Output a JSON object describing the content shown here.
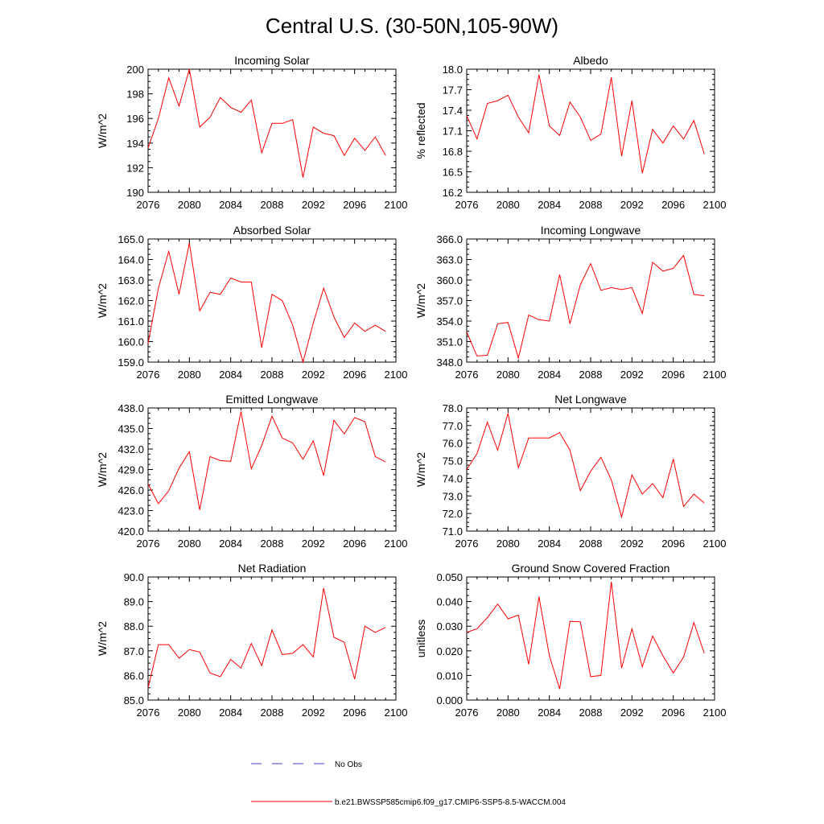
{
  "figure": {
    "title": "Central U.S. (30-50N,105-90W)",
    "legend": [
      {
        "label": "No Obs",
        "color": "#3c3ccc",
        "style": "dashed"
      },
      {
        "label": "b.e21.BWSSP585cmip6.f09_g17.CMIP6-SSP5-8.5-WACCM.004",
        "color": "#ff0000",
        "style": "solid"
      }
    ]
  },
  "chart_data": [
    {
      "type": "line",
      "title": "Incoming Solar",
      "ylabel": "W/m^2",
      "xlim": [
        2076,
        2100
      ],
      "ylim": [
        190,
        200
      ],
      "xticks": [
        "2076",
        "2080",
        "2084",
        "2088",
        "2092",
        "2096",
        "2100"
      ],
      "yticks": [
        "190",
        "192",
        "194",
        "196",
        "198",
        "200"
      ],
      "series": [
        {
          "name": "b.e21.BWSSP585cmip6.f09_g17.CMIP6-SSP5-8.5-WACCM.004",
          "color": "#ff0000",
          "x": [
            2076,
            2077,
            2078,
            2079,
            2080,
            2081,
            2082,
            2083,
            2084,
            2085,
            2086,
            2087,
            2088,
            2089,
            2090,
            2091,
            2092,
            2093,
            2094,
            2095,
            2096,
            2097,
            2098,
            2099
          ],
          "y": [
            193.6,
            196.0,
            199.3,
            197.0,
            200.0,
            195.3,
            196.1,
            197.7,
            196.9,
            196.5,
            197.5,
            193.2,
            195.6,
            195.6,
            195.9,
            191.2,
            195.3,
            194.8,
            194.6,
            193.0,
            194.4,
            193.4,
            194.5,
            193.0
          ]
        }
      ]
    },
    {
      "type": "line",
      "title": "Albedo",
      "ylabel": "% reflected",
      "xlim": [
        2076,
        2100
      ],
      "ylim": [
        16.2,
        18.0
      ],
      "xticks": [
        "2076",
        "2080",
        "2084",
        "2088",
        "2092",
        "2096",
        "2100"
      ],
      "yticks": [
        "16.2",
        "16.5",
        "16.8",
        "17.1",
        "17.4",
        "17.7",
        "18.0"
      ],
      "series": [
        {
          "name": "b.e21.BWSSP585cmip6.f09_g17.CMIP6-SSP5-8.5-WACCM.004",
          "color": "#ff0000",
          "x": [
            2076,
            2077,
            2078,
            2079,
            2080,
            2081,
            2082,
            2083,
            2084,
            2085,
            2086,
            2087,
            2088,
            2089,
            2090,
            2091,
            2092,
            2093,
            2094,
            2095,
            2096,
            2097,
            2098,
            2099
          ],
          "y": [
            17.32,
            16.98,
            17.5,
            17.54,
            17.62,
            17.3,
            17.07,
            17.92,
            17.17,
            17.03,
            17.52,
            17.3,
            16.96,
            17.05,
            17.88,
            16.73,
            17.54,
            16.48,
            17.12,
            16.92,
            17.17,
            16.98,
            17.25,
            16.76
          ]
        }
      ]
    },
    {
      "type": "line",
      "title": "Absorbed Solar",
      "ylabel": "W/m^2",
      "xlim": [
        2076,
        2100
      ],
      "ylim": [
        159.0,
        165.0
      ],
      "xticks": [
        "2076",
        "2080",
        "2084",
        "2088",
        "2092",
        "2096",
        "2100"
      ],
      "yticks": [
        "159.0",
        "160.0",
        "161.0",
        "162.0",
        "163.0",
        "164.0",
        "165.0"
      ],
      "series": [
        {
          "name": "b.e21.BWSSP585cmip6.f09_g17.CMIP6-SSP5-8.5-WACCM.004",
          "color": "#ff0000",
          "x": [
            2076,
            2077,
            2078,
            2079,
            2080,
            2081,
            2082,
            2083,
            2084,
            2085,
            2086,
            2087,
            2088,
            2089,
            2090,
            2091,
            2092,
            2093,
            2094,
            2095,
            2096,
            2097,
            2098,
            2099
          ],
          "y": [
            159.9,
            162.6,
            164.4,
            162.3,
            164.8,
            161.5,
            162.4,
            162.3,
            163.1,
            162.9,
            162.9,
            159.7,
            162.3,
            162.0,
            160.8,
            159.0,
            160.9,
            162.6,
            161.2,
            160.2,
            160.9,
            160.5,
            160.8,
            160.5
          ]
        }
      ]
    },
    {
      "type": "line",
      "title": "Incoming Longwave",
      "ylabel": "W/m^2",
      "xlim": [
        2076,
        2100
      ],
      "ylim": [
        348.0,
        366.0
      ],
      "xticks": [
        "2076",
        "2080",
        "2084",
        "2088",
        "2092",
        "2096",
        "2100"
      ],
      "yticks": [
        "348.0",
        "351.0",
        "354.0",
        "357.0",
        "360.0",
        "363.0",
        "366.0"
      ],
      "series": [
        {
          "name": "b.e21.BWSSP585cmip6.f09_g17.CMIP6-SSP5-8.5-WACCM.004",
          "color": "#ff0000",
          "x": [
            2076,
            2077,
            2078,
            2079,
            2080,
            2081,
            2082,
            2083,
            2084,
            2085,
            2086,
            2087,
            2088,
            2089,
            2090,
            2091,
            2092,
            2093,
            2094,
            2095,
            2096,
            2097,
            2098,
            2099
          ],
          "y": [
            352.4,
            348.9,
            349.0,
            353.6,
            353.8,
            348.6,
            354.9,
            354.2,
            354.0,
            360.8,
            353.6,
            359.3,
            362.4,
            358.5,
            358.9,
            358.6,
            358.9,
            355.1,
            362.6,
            361.3,
            361.7,
            363.6,
            357.9,
            357.7
          ]
        }
      ]
    },
    {
      "type": "line",
      "title": "Emitted Longwave",
      "ylabel": "W/m^2",
      "xlim": [
        2076,
        2100
      ],
      "ylim": [
        420.0,
        438.0
      ],
      "xticks": [
        "2076",
        "2080",
        "2084",
        "2088",
        "2092",
        "2096",
        "2100"
      ],
      "yticks": [
        "420.0",
        "423.0",
        "426.0",
        "429.0",
        "432.0",
        "435.0",
        "438.0"
      ],
      "series": [
        {
          "name": "b.e21.BWSSP585cmip6.f09_g17.CMIP6-SSP5-8.5-WACCM.004",
          "color": "#ff0000",
          "x": [
            2076,
            2077,
            2078,
            2079,
            2080,
            2081,
            2082,
            2083,
            2084,
            2085,
            2086,
            2087,
            2088,
            2089,
            2090,
            2091,
            2092,
            2093,
            2094,
            2095,
            2096,
            2097,
            2098,
            2099
          ],
          "y": [
            426.9,
            424.0,
            425.9,
            429.2,
            431.6,
            423.1,
            430.9,
            430.3,
            430.2,
            437.5,
            429.1,
            432.5,
            436.8,
            433.6,
            432.9,
            430.5,
            433.2,
            428.1,
            436.2,
            434.2,
            436.6,
            436.0,
            430.9,
            430.1
          ]
        }
      ]
    },
    {
      "type": "line",
      "title": "Net Longwave",
      "ylabel": "W/m^2",
      "xlim": [
        2076,
        2100
      ],
      "ylim": [
        71.0,
        78.0
      ],
      "xticks": [
        "2076",
        "2080",
        "2084",
        "2088",
        "2092",
        "2096",
        "2100"
      ],
      "yticks": [
        "71.0",
        "72.0",
        "73.0",
        "74.0",
        "75.0",
        "76.0",
        "77.0",
        "78.0"
      ],
      "series": [
        {
          "name": "b.e21.BWSSP585cmip6.f09_g17.CMIP6-SSP5-8.5-WACCM.004",
          "color": "#ff0000",
          "x": [
            2076,
            2077,
            2078,
            2079,
            2080,
            2081,
            2082,
            2083,
            2084,
            2085,
            2086,
            2087,
            2088,
            2089,
            2090,
            2091,
            2092,
            2093,
            2094,
            2095,
            2096,
            2097,
            2098,
            2099
          ],
          "y": [
            74.5,
            75.4,
            77.2,
            75.6,
            77.7,
            74.6,
            76.3,
            76.3,
            76.3,
            76.6,
            75.6,
            73.3,
            74.4,
            75.2,
            73.9,
            71.8,
            74.2,
            73.1,
            73.7,
            72.9,
            75.1,
            72.4,
            73.1,
            72.6
          ]
        }
      ]
    },
    {
      "type": "line",
      "title": "Net Radiation",
      "ylabel": "W/m^2",
      "xlim": [
        2076,
        2100
      ],
      "ylim": [
        85.0,
        90.0
      ],
      "xticks": [
        "2076",
        "2080",
        "2084",
        "2088",
        "2092",
        "2096",
        "2100"
      ],
      "yticks": [
        "85.0",
        "86.0",
        "87.0",
        "88.0",
        "89.0",
        "90.0"
      ],
      "series": [
        {
          "name": "b.e21.BWSSP585cmip6.f09_g17.CMIP6-SSP5-8.5-WACCM.004",
          "color": "#ff0000",
          "x": [
            2076,
            2077,
            2078,
            2079,
            2080,
            2081,
            2082,
            2083,
            2084,
            2085,
            2086,
            2087,
            2088,
            2089,
            2090,
            2091,
            2092,
            2093,
            2094,
            2095,
            2096,
            2097,
            2098,
            2099
          ],
          "y": [
            85.5,
            87.25,
            87.25,
            86.7,
            87.05,
            86.95,
            86.1,
            85.95,
            86.65,
            86.3,
            87.3,
            86.4,
            87.85,
            86.85,
            86.9,
            87.25,
            86.75,
            89.55,
            87.55,
            87.35,
            85.85,
            88.0,
            87.75,
            87.95
          ]
        }
      ]
    },
    {
      "type": "line",
      "title": "Ground Snow Covered Fraction",
      "ylabel": "unitless",
      "xlim": [
        2076,
        2100
      ],
      "ylim": [
        0.0,
        0.05
      ],
      "xticks": [
        "2076",
        "2080",
        "2084",
        "2088",
        "2092",
        "2096",
        "2100"
      ],
      "yticks": [
        "0.000",
        "0.010",
        "0.020",
        "0.030",
        "0.040",
        "0.050"
      ],
      "series": [
        {
          "name": "b.e21.BWSSP585cmip6.f09_g17.CMIP6-SSP5-8.5-WACCM.004",
          "color": "#ff0000",
          "x": [
            2076,
            2077,
            2078,
            2079,
            2080,
            2081,
            2082,
            2083,
            2084,
            2085,
            2086,
            2087,
            2088,
            2089,
            2090,
            2091,
            2092,
            2093,
            2094,
            2095,
            2096,
            2097,
            2098,
            2099
          ],
          "y": [
            0.0275,
            0.029,
            0.0335,
            0.039,
            0.033,
            0.0345,
            0.0145,
            0.042,
            0.018,
            0.0045,
            0.032,
            0.0318,
            0.0095,
            0.01,
            0.048,
            0.013,
            0.029,
            0.0135,
            0.026,
            0.018,
            0.011,
            0.0175,
            0.0315,
            0.019
          ]
        }
      ]
    }
  ]
}
